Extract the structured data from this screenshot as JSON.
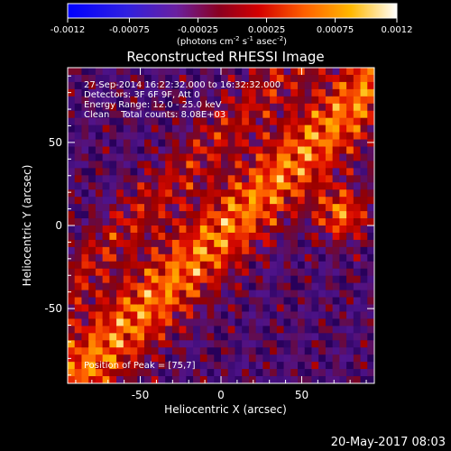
{
  "colorbar": {
    "ticks": [
      "-0.0012",
      "-0.00075",
      "-0.00025",
      "0.00025",
      "0.00075",
      "0.0012"
    ],
    "unit_prefix": "(photons cm",
    "unit_exp1": "-2",
    "unit_mid": " s",
    "unit_exp2": "-1",
    "unit_mid2": " asec",
    "unit_exp3": "-2",
    "unit_suffix": ")"
  },
  "title": "Reconstructed RHESSI Image",
  "annotations": {
    "line1": "27-Sep-2014 16:22:32.000 to 16:32:32.000",
    "line2": "Detectors: 3F 6F 9F, Att 0",
    "line3": "Energy Range: 12.0 - 25.0 keV",
    "line4": "Clean    Total counts: 8.08E+03",
    "peak": "Position of Peak = [75,7]"
  },
  "footer_timestamp": "20-May-2017 08:03",
  "chart_data": {
    "type": "heatmap",
    "title": "Reconstructed RHESSI Image",
    "xlabel": "Heliocentric X (arcsec)",
    "ylabel": "Heliocentric Y (arcsec)",
    "xlim": [
      -95,
      95
    ],
    "ylim": [
      -95,
      95
    ],
    "x_ticks": [
      -50,
      0,
      50
    ],
    "y_ticks": [
      50,
      0,
      -50
    ],
    "colormap_range": [
      -0.0012,
      0.0012
    ],
    "peak_position": [
      75,
      7
    ],
    "grid": false
  }
}
